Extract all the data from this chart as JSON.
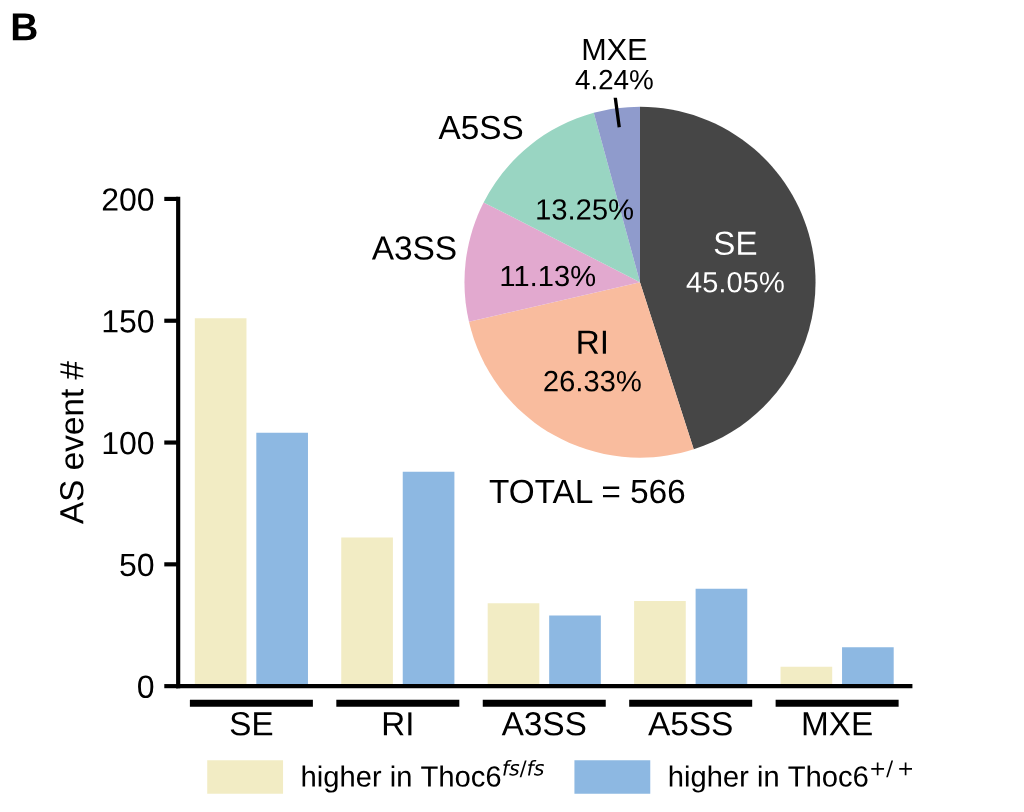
{
  "chart_data": [
    {
      "type": "bar",
      "ylabel": "AS event #",
      "annotations": [
        "B"
      ],
      "categories": [
        "SE",
        "RI",
        "A3SS",
        "A5SS",
        "MXE"
      ],
      "series": [
        {
          "name": "higher in Thoc6$^{fs/fs}$",
          "color": "#f2ecc4",
          "values": [
            151,
            61,
            34,
            35,
            8
          ]
        },
        {
          "name": "higher in Thoc6$^{+/+}$",
          "color": "#8db8e2",
          "values": [
            104,
            88,
            29,
            40,
            16
          ]
        }
      ],
      "ylim": [
        0,
        200
      ],
      "yticks": [
        0,
        50,
        100,
        150,
        200
      ],
      "grid": false,
      "legend": "bottom"
    },
    {
      "type": "pie",
      "annotations": [
        "TOTAL = 566"
      ],
      "categories": [
        "SE",
        "RI",
        "A3SS",
        "A5SS",
        "MXE"
      ],
      "values": [
        45.05,
        26.33,
        11.13,
        13.25,
        4.24
      ],
      "colors": [
        "#464646",
        "#f9bc9e",
        "#e2a9cf",
        "#99d5c2",
        "#8f9bcc"
      ],
      "value_labels": [
        "45.05%",
        "26.33%",
        "11.13%",
        "13.25%",
        "4.24%"
      ]
    }
  ]
}
